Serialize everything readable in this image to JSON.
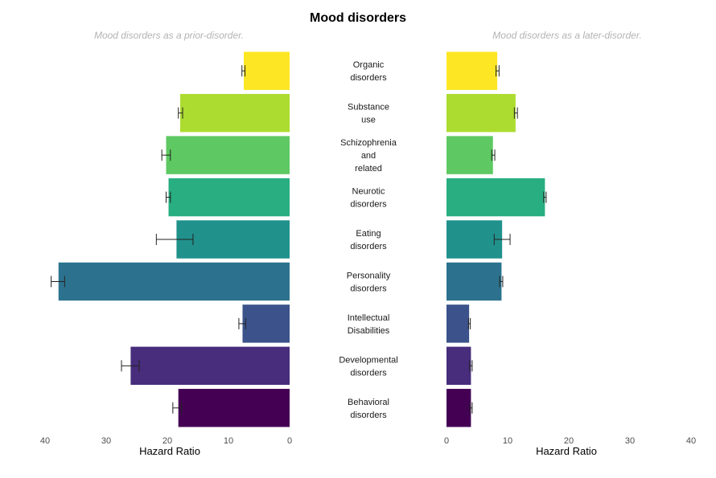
{
  "chart_data": {
    "type": "bar",
    "title": "Mood disorders",
    "categories": [
      "Organic\ndisorders",
      "Substance\nuse",
      "Schizophrenia\nand\nrelated",
      "Neurotic\ndisorders",
      "Eating\ndisorders",
      "Personality\ndisorders",
      "Intellectual\nDisabilities",
      "Developmental\ndisorders",
      "Behavioral\ndisorders"
    ],
    "colors": [
      "#fde725",
      "#addc30",
      "#5ec962",
      "#28ae80",
      "#21918c",
      "#2c728e",
      "#3b528b",
      "#472d7b",
      "#440154"
    ],
    "panels": [
      {
        "name": "prior",
        "subtitle": "Mood disorders as a prior-disorder.",
        "xlabel": "Hazard Ratio",
        "xlim": [
          40,
          0
        ],
        "ticks": [
          "40",
          "30",
          "20",
          "10",
          "0"
        ],
        "tick_values": [
          40,
          30,
          20,
          10,
          0
        ],
        "values": [
          7.5,
          17.9,
          20.2,
          19.8,
          18.5,
          37.8,
          7.7,
          26.0,
          18.2
        ],
        "ci_low": [
          7.3,
          17.5,
          19.5,
          19.5,
          15.8,
          36.8,
          7.2,
          24.6,
          17.7
        ],
        "ci_high": [
          7.8,
          18.2,
          20.9,
          20.2,
          21.8,
          39.0,
          8.3,
          27.5,
          19.1
        ]
      },
      {
        "name": "later",
        "subtitle": "Mood disorders as a later-disorder.",
        "xlabel": "Hazard Ratio",
        "xlim": [
          0,
          40
        ],
        "ticks": [
          "0",
          "10",
          "20",
          "30",
          "40"
        ],
        "tick_values": [
          0,
          10,
          20,
          30,
          40
        ],
        "values": [
          8.3,
          11.3,
          7.6,
          16.1,
          9.1,
          9.0,
          3.7,
          4.0,
          4.0
        ],
        "ci_low": [
          8.1,
          11.1,
          7.4,
          15.9,
          7.8,
          8.7,
          3.6,
          3.8,
          3.8
        ],
        "ci_high": [
          8.6,
          11.6,
          7.9,
          16.3,
          10.4,
          9.2,
          3.9,
          4.2,
          4.2
        ]
      }
    ]
  }
}
